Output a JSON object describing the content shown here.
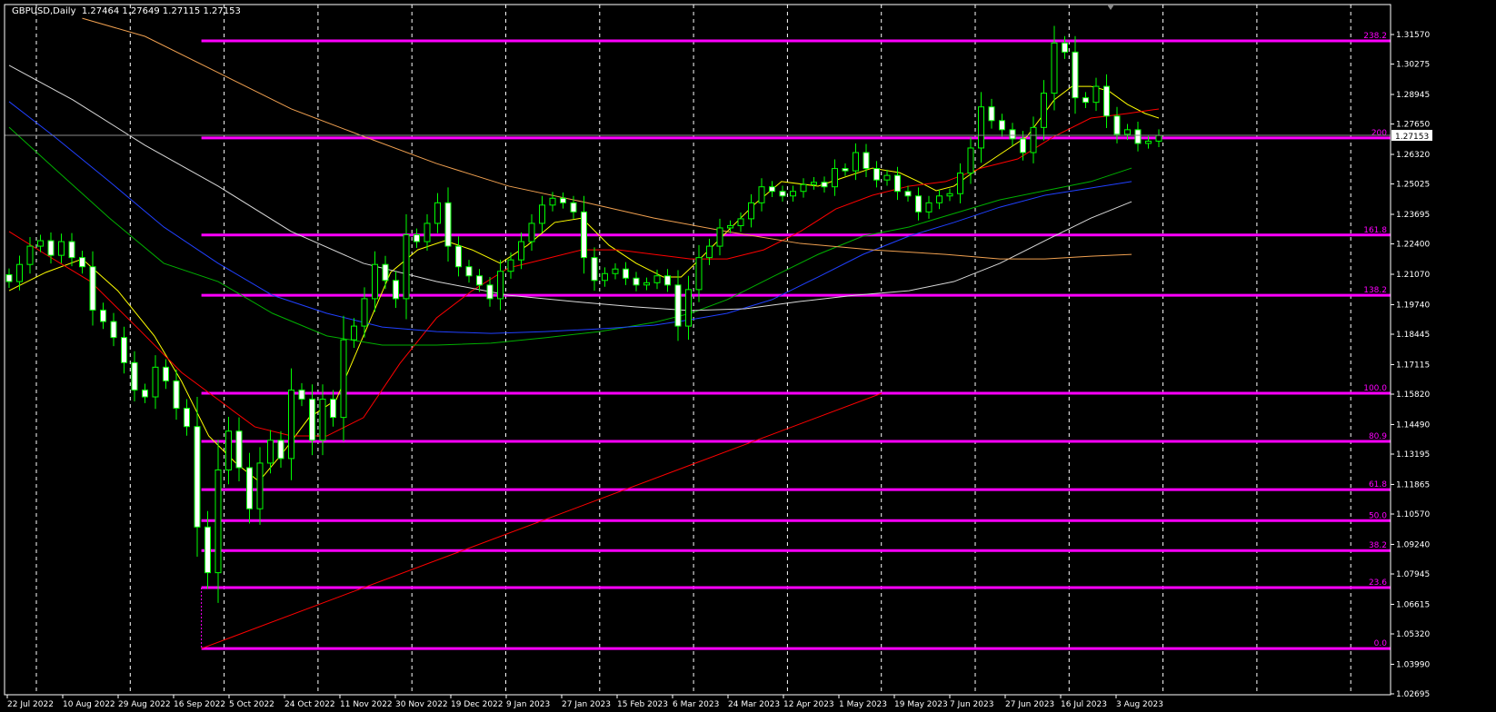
{
  "header": {
    "symbol": "GBPUSD,Daily",
    "ohlc": "1.27464 1.27649 1.27115 1.27153"
  },
  "colors": {
    "background": "#000000",
    "grid": "#ffffff",
    "bull_candle": "#00ff00",
    "bear_fill": "#ffffff",
    "fibonacci": "#ff00ff",
    "trendline": "#ff0000",
    "current_price_line": "#8a8a8a"
  },
  "chart_data": {
    "type": "candlestick",
    "title": "GBPUSD,Daily",
    "ylim": [
      1.02695,
      1.3157
    ],
    "y_ticks": [
      "1.31570",
      "1.30275",
      "1.28945",
      "1.27650",
      "1.26320",
      "1.25025",
      "1.23695",
      "1.22400",
      "1.21070",
      "1.19740",
      "1.18445",
      "1.17115",
      "1.15820",
      "1.14490",
      "1.13195",
      "1.11865",
      "1.10570",
      "1.09240",
      "1.07945",
      "1.06615",
      "1.05320",
      "1.03990",
      "1.02695"
    ],
    "x_ticks": [
      "22 Jul 2022",
      "10 Aug 2022",
      "29 Aug 2022",
      "16 Sep 2022",
      "5 Oct 2022",
      "24 Oct 2022",
      "11 Nov 2022",
      "30 Nov 2022",
      "19 Dec 2022",
      "9 Jan 2023",
      "27 Jan 2023",
      "15 Feb 2023",
      "6 Mar 2023",
      "24 Mar 2023",
      "12 Apr 2023",
      "1 May 2023",
      "19 May 2023",
      "7 Jun 2023",
      "27 Jun 2023",
      "16 Jul 2023",
      "3 Aug 2023"
    ],
    "grid": true,
    "current_price": "1.27153",
    "closes": [
      1.2075,
      1.215,
      1.223,
      1.2254,
      1.219,
      1.225,
      1.218,
      1.214,
      1.195,
      1.19,
      1.183,
      1.172,
      1.16,
      1.157,
      1.17,
      1.164,
      1.152,
      1.144,
      1.1,
      1.08,
      1.125,
      1.142,
      1.126,
      1.108,
      1.128,
      1.138,
      1.13,
      1.16,
      1.156,
      1.138,
      1.156,
      1.148,
      1.182,
      1.188,
      1.2,
      1.215,
      1.208,
      1.2,
      1.228,
      1.225,
      1.233,
      1.242,
      1.223,
      1.214,
      1.21,
      1.206,
      1.2,
      1.212,
      1.217,
      1.225,
      1.233,
      1.241,
      1.244,
      1.242,
      1.238,
      1.218,
      1.208,
      1.211,
      1.213,
      1.209,
      1.206,
      1.207,
      1.21,
      1.206,
      1.188,
      1.204,
      1.218,
      1.223,
      1.231,
      1.232,
      1.235,
      1.242,
      1.249,
      1.247,
      1.245,
      1.247,
      1.25,
      1.251,
      1.249,
      1.257,
      1.256,
      1.264,
      1.257,
      1.252,
      1.254,
      1.247,
      1.245,
      1.238,
      1.242,
      1.245,
      1.246,
      1.255,
      1.266,
      1.284,
      1.278,
      1.274,
      1.27,
      1.264,
      1.275,
      1.29,
      1.312,
      1.308,
      1.288,
      1.286,
      1.293,
      1.28,
      1.272,
      1.274,
      1.268,
      1.269,
      1.27153
    ],
    "moving_averages": [
      {
        "color": "#ffff00",
        "points": [
          [
            0,
            1.2035
          ],
          [
            3.5,
            1.2115
          ],
          [
            7,
            1.2174
          ],
          [
            10.4,
            1.2035
          ],
          [
            13.9,
            1.1837
          ],
          [
            16.5,
            1.1638
          ],
          [
            19.1,
            1.1399
          ],
          [
            21.7,
            1.128
          ],
          [
            23.9,
            1.12
          ],
          [
            26.1,
            1.132
          ],
          [
            28.7,
            1.1479
          ],
          [
            31.3,
            1.1558
          ],
          [
            33.9,
            1.1837
          ],
          [
            36.5,
            1.2115
          ],
          [
            39.1,
            1.2214
          ],
          [
            41.7,
            1.2254
          ],
          [
            44.3,
            1.2214
          ],
          [
            47,
            1.2155
          ],
          [
            49.6,
            1.2234
          ],
          [
            52.2,
            1.2334
          ],
          [
            54.8,
            1.2353
          ],
          [
            57.4,
            1.2234
          ],
          [
            60,
            1.2155
          ],
          [
            62.6,
            1.2095
          ],
          [
            64.3,
            1.2095
          ],
          [
            66.1,
            1.2174
          ],
          [
            68.7,
            1.2294
          ],
          [
            71.3,
            1.2413
          ],
          [
            73.9,
            1.2513
          ],
          [
            77.4,
            1.2493
          ],
          [
            80,
            1.2533
          ],
          [
            82.6,
            1.2572
          ],
          [
            85.2,
            1.2552
          ],
          [
            87,
            1.2513
          ],
          [
            88.7,
            1.2473
          ],
          [
            90.4,
            1.2493
          ],
          [
            92.2,
            1.2552
          ],
          [
            94.8,
            1.2632
          ],
          [
            97.4,
            1.2711
          ],
          [
            100,
            1.2871
          ],
          [
            101.7,
            1.293
          ],
          [
            103.5,
            1.293
          ],
          [
            105.2,
            1.291
          ],
          [
            107,
            1.2851
          ],
          [
            108.7,
            1.2811
          ],
          [
            110,
            1.2791
          ]
        ]
      },
      {
        "color": "#ff0000",
        "points": [
          [
            0,
            1.2294
          ],
          [
            3.5,
            1.2194
          ],
          [
            7.8,
            1.2075
          ],
          [
            12.2,
            1.1876
          ],
          [
            16.5,
            1.1677
          ],
          [
            20,
            1.1558
          ],
          [
            23.5,
            1.1439
          ],
          [
            27,
            1.1399
          ],
          [
            30.4,
            1.1399
          ],
          [
            33.9,
            1.1479
          ],
          [
            37.4,
            1.1717
          ],
          [
            40.9,
            1.1916
          ],
          [
            44.3,
            1.2035
          ],
          [
            47.8,
            1.2135
          ],
          [
            51.3,
            1.2174
          ],
          [
            54.8,
            1.2214
          ],
          [
            58.3,
            1.2214
          ],
          [
            61.7,
            1.2194
          ],
          [
            65.2,
            1.2174
          ],
          [
            68.7,
            1.2174
          ],
          [
            72.2,
            1.2214
          ],
          [
            75.7,
            1.2294
          ],
          [
            79.1,
            1.2393
          ],
          [
            82.6,
            1.2453
          ],
          [
            86.1,
            1.2493
          ],
          [
            89.6,
            1.2513
          ],
          [
            93,
            1.2572
          ],
          [
            96.5,
            1.2612
          ],
          [
            100,
            1.2711
          ],
          [
            103.5,
            1.2791
          ],
          [
            107,
            1.2811
          ],
          [
            110,
            1.2831
          ]
        ]
      },
      {
        "color": "#00b000",
        "points": [
          [
            0,
            1.2751
          ],
          [
            4.3,
            1.2572
          ],
          [
            9.6,
            1.2353
          ],
          [
            14.8,
            1.2155
          ],
          [
            20,
            1.2075
          ],
          [
            25.2,
            1.1936
          ],
          [
            30.4,
            1.1837
          ],
          [
            35.7,
            1.1797
          ],
          [
            40.9,
            1.1797
          ],
          [
            46.1,
            1.1805
          ],
          [
            51.3,
            1.1829
          ],
          [
            56.5,
            1.1856
          ],
          [
            61.7,
            1.1896
          ],
          [
            65.2,
            1.1936
          ],
          [
            68.7,
            1.1996
          ],
          [
            73,
            1.2095
          ],
          [
            77.4,
            1.2194
          ],
          [
            81.7,
            1.2274
          ],
          [
            86.1,
            1.2314
          ],
          [
            90.4,
            1.2373
          ],
          [
            94.8,
            1.2433
          ],
          [
            99.1,
            1.2473
          ],
          [
            103.5,
            1.2513
          ],
          [
            107.4,
            1.2572
          ]
        ]
      },
      {
        "color": "#2040ff",
        "points": [
          [
            0,
            1.2863
          ],
          [
            4.3,
            1.2711
          ],
          [
            9.6,
            1.2513
          ],
          [
            14.8,
            1.2314
          ],
          [
            20,
            1.2155
          ],
          [
            25.2,
            1.2015
          ],
          [
            30.4,
            1.1936
          ],
          [
            35.7,
            1.1876
          ],
          [
            40.9,
            1.1856
          ],
          [
            46.1,
            1.1848
          ],
          [
            51.3,
            1.1856
          ],
          [
            56.5,
            1.1868
          ],
          [
            61.7,
            1.1884
          ],
          [
            65.2,
            1.1908
          ],
          [
            68.7,
            1.1936
          ],
          [
            73,
            1.1996
          ],
          [
            77.4,
            1.2095
          ],
          [
            81.7,
            1.2194
          ],
          [
            86.1,
            1.2274
          ],
          [
            90.4,
            1.2334
          ],
          [
            94.8,
            1.2401
          ],
          [
            99.1,
            1.2453
          ],
          [
            103.5,
            1.2485
          ],
          [
            107.4,
            1.2513
          ]
        ]
      },
      {
        "color": "#d8d8d8",
        "points": [
          [
            0,
            1.3022
          ],
          [
            6.1,
            1.2871
          ],
          [
            13,
            1.2672
          ],
          [
            20,
            1.2493
          ],
          [
            27,
            1.2294
          ],
          [
            33.9,
            1.2155
          ],
          [
            40.9,
            1.2075
          ],
          [
            47.8,
            1.2015
          ],
          [
            54.8,
            1.1984
          ],
          [
            60,
            1.1964
          ],
          [
            65.2,
            1.1948
          ],
          [
            70.4,
            1.1956
          ],
          [
            75.7,
            1.1988
          ],
          [
            80.9,
            1.2015
          ],
          [
            86.1,
            1.2035
          ],
          [
            90.4,
            1.2075
          ],
          [
            94.8,
            1.2155
          ],
          [
            99.1,
            1.2254
          ],
          [
            103.5,
            1.2353
          ],
          [
            107.4,
            1.2425
          ]
        ]
      },
      {
        "color": "#f0a050",
        "points": [
          [
            7,
            1.3228
          ],
          [
            13,
            1.3149
          ],
          [
            20,
            1.299
          ],
          [
            27,
            1.2831
          ],
          [
            33.9,
            1.2711
          ],
          [
            40.9,
            1.2592
          ],
          [
            47.8,
            1.2493
          ],
          [
            54.8,
            1.2425
          ],
          [
            61.7,
            1.2353
          ],
          [
            68.7,
            1.2294
          ],
          [
            75.7,
            1.2242
          ],
          [
            82.6,
            1.2214
          ],
          [
            89.6,
            1.2194
          ],
          [
            94.8,
            1.2174
          ],
          [
            99.1,
            1.2174
          ],
          [
            103.5,
            1.2186
          ],
          [
            107.4,
            1.2194
          ]
        ]
      }
    ],
    "fibonacci_levels": [
      {
        "label": "238.2",
        "price": 1.3129
      },
      {
        "label": "200",
        "price": 1.2704
      },
      {
        "label": "161.8",
        "price": 1.2279
      },
      {
        "label": "138.2",
        "price": 1.2015
      },
      {
        "label": "100.0",
        "price": 1.1586
      },
      {
        "label": "80.9",
        "price": 1.1375
      },
      {
        "label": "61.8",
        "price": 1.1164
      },
      {
        "label": "50.0",
        "price": 1.1028
      },
      {
        "label": "38.2",
        "price": 1.0897
      },
      {
        "label": "23.6",
        "price": 1.0735
      },
      {
        "label": "0.0",
        "price": 1.0468
      }
    ],
    "trendline": [
      [
        18.4,
        1.0468
      ],
      [
        83.5,
        1.1586
      ]
    ]
  }
}
